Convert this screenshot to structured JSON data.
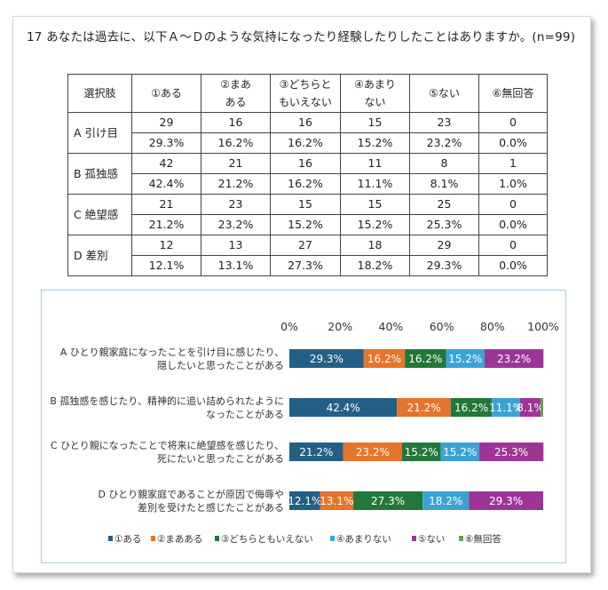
{
  "question": "17 あなたは過去に、以下Ａ～Ｄのような気持になったり経験したりしたことはありますか。(n=99)",
  "table": {
    "header": [
      "選択肢",
      "①ある",
      "②まあ\nある",
      "③どちらと\nもいえない",
      "④あまり\nない",
      "⑤ない",
      "⑥無回答"
    ],
    "rows": [
      {
        "label": "A 引け目",
        "counts": [
          "29",
          "16",
          "16",
          "15",
          "23",
          "0"
        ],
        "percents": [
          "29.3%",
          "16.2%",
          "16.2%",
          "15.2%",
          "23.2%",
          "0.0%"
        ]
      },
      {
        "label": "B 孤独感",
        "counts": [
          "42",
          "21",
          "16",
          "11",
          "8",
          "1"
        ],
        "percents": [
          "42.4%",
          "21.2%",
          "16.2%",
          "11.1%",
          "8.1%",
          "1.0%"
        ]
      },
      {
        "label": "C 絶望感",
        "counts": [
          "21",
          "23",
          "15",
          "15",
          "25",
          "0"
        ],
        "percents": [
          "21.2%",
          "23.2%",
          "15.2%",
          "15.2%",
          "25.3%",
          "0.0%"
        ]
      },
      {
        "label": "D 差別",
        "counts": [
          "12",
          "13",
          "27",
          "18",
          "29",
          "0"
        ],
        "percents": [
          "12.1%",
          "13.1%",
          "27.3%",
          "18.2%",
          "29.3%",
          "0.0%"
        ]
      }
    ]
  },
  "chart_data": {
    "type": "bar",
    "orientation": "horizontal",
    "stacked": true,
    "xlim": [
      0,
      100
    ],
    "xticks": [
      "0%",
      "20%",
      "40%",
      "60%",
      "80%",
      "100%"
    ],
    "categories": [
      [
        "A ひとり親家庭になったことを引け目に感じたり、",
        "隠したいと思ったことがある"
      ],
      [
        "B 孤独感を感じたり、精神的に追い詰められたように",
        "なったことがある"
      ],
      [
        "C ひとり親になったことで将来に絶望感を感じたり、",
        "死にたいと思ったことがある"
      ],
      [
        "D ひとり親家庭であることが原因で侮辱や",
        "差別を受けたと感じたことがある"
      ]
    ],
    "series": [
      {
        "name": "①ある",
        "color": "#245f86",
        "values": [
          29.3,
          42.4,
          21.2,
          12.1
        ],
        "labels": [
          "29.3%",
          "42.4%",
          "21.2%",
          "12.1%"
        ]
      },
      {
        "name": "②まあある",
        "color": "#e5742c",
        "values": [
          16.2,
          21.2,
          23.2,
          13.1
        ],
        "labels": [
          "16.2%",
          "21.2%",
          "23.2%",
          "13.1%"
        ]
      },
      {
        "name": "③どちらともいえない",
        "color": "#23773a",
        "values": [
          16.2,
          16.2,
          15.2,
          27.3
        ],
        "labels": [
          "16.2%",
          "16.2%",
          "15.2%",
          "27.3%"
        ]
      },
      {
        "name": "④あまりない",
        "color": "#3ba3d4",
        "values": [
          15.2,
          11.1,
          15.2,
          18.2
        ],
        "labels": [
          "15.2%",
          "11.1%",
          "15.2%",
          "18.2%"
        ]
      },
      {
        "name": "⑤ない",
        "color": "#9c3596",
        "values": [
          23.2,
          8.1,
          25.3,
          29.3
        ],
        "labels": [
          "23.2%",
          "8.1%",
          "25.3%",
          "29.3%"
        ]
      },
      {
        "name": "⑥無回答",
        "color": "#5fa64a",
        "values": [
          0.0,
          1.0,
          0.0,
          0.0
        ],
        "labels": [
          "",
          "",
          "",
          ""
        ]
      }
    ],
    "legend_position": "bottom"
  }
}
